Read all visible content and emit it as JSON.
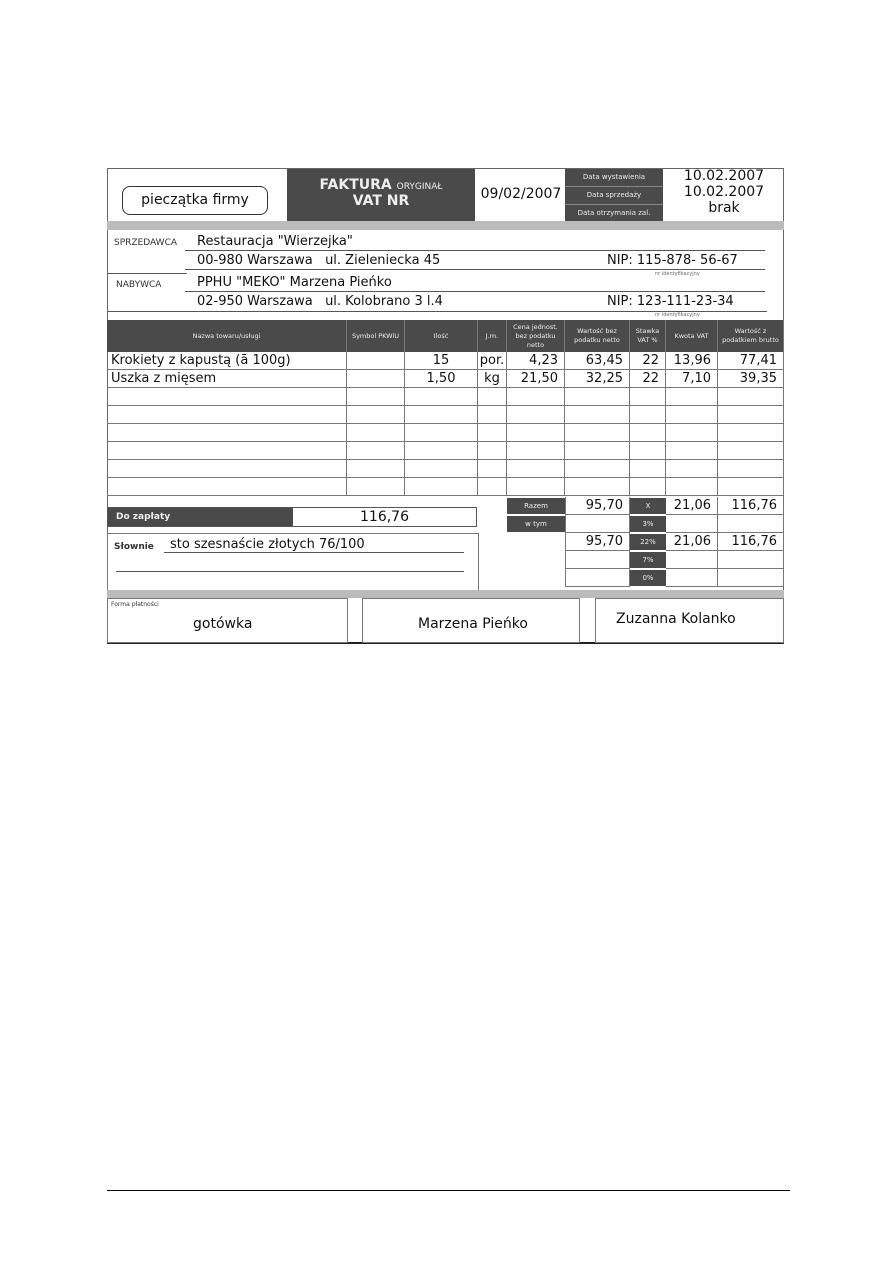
{
  "header": {
    "stamp": "pieczątka firmy",
    "title_main": "FAKTURA",
    "title_sub": "ORYGINAŁ",
    "title_line2": "VAT NR",
    "number_date": "09/02/2007",
    "dates": [
      {
        "label": "Data wystawienia",
        "value": "10.02.2007"
      },
      {
        "label": "Data sprzedaży",
        "value": "10.02.2007"
      },
      {
        "label": "Data otrzymania zal.",
        "value": "brak"
      }
    ]
  },
  "seller": {
    "label": "SPRZEDAWCA",
    "name": "Restauracja \"Wierzejka\"",
    "address": "00-980 Warszawa   ul. Zieleniecka 45",
    "nip": "NIP: 115-878- 56-67",
    "nip_note": "nr identyfikacyjny"
  },
  "buyer": {
    "label": "NABYWCA",
    "name": "PPHU \"MEKO\"  Marzena Pieńko",
    "address": "02-950 Warszawa   ul. Kolobrano 3 l.4",
    "nip": "NIP: 123-111-23-34",
    "nip_note": "nr identyfikacyjny"
  },
  "table": {
    "headers": [
      "Nazwa towaru/usługi",
      "Symbol PKWiU",
      "Ilość",
      "J.m.",
      "Cena jednost. bez podatku netto",
      "Wartość bez podatku netto",
      "Stawka VAT %",
      "Kwota VAT",
      "Wartość z podatkiem brutto"
    ],
    "rows": [
      [
        "Krokiety z kapustą  (ā 100g)",
        "",
        "15",
        "por.",
        "4,23",
        "63,45",
        "22",
        "13,96",
        "77,41"
      ],
      [
        "Uszka z mięsem",
        "",
        "1,50",
        "kg",
        "21,50",
        "32,25",
        "22",
        "7,10",
        "39,35"
      ],
      [
        "",
        "",
        "",
        "",
        "",
        "",
        "",
        "",
        ""
      ],
      [
        "",
        "",
        "",
        "",
        "",
        "",
        "",
        "",
        ""
      ],
      [
        "",
        "",
        "",
        "",
        "",
        "",
        "",
        "",
        ""
      ],
      [
        "",
        "",
        "",
        "",
        "",
        "",
        "",
        "",
        ""
      ],
      [
        "",
        "",
        "",
        "",
        "",
        "",
        "",
        "",
        ""
      ],
      [
        "",
        "",
        "",
        "",
        "",
        "",
        "",
        "",
        ""
      ]
    ]
  },
  "totals": {
    "razem_label": "Razem",
    "w_tym_label": "w tym",
    "rows": [
      {
        "rate": "X",
        "netto": "95,70",
        "vat": "21,06",
        "brutto": "116,76"
      },
      {
        "rate": "3%",
        "netto": "",
        "vat": "",
        "brutto": ""
      },
      {
        "rate": "22%",
        "netto": "95,70",
        "vat": "21,06",
        "brutto": "116,76"
      },
      {
        "rate": "7%",
        "netto": "",
        "vat": "",
        "brutto": ""
      },
      {
        "rate": "0%",
        "netto": "",
        "vat": "",
        "brutto": ""
      }
    ]
  },
  "payment": {
    "due_label": "Do zapłaty",
    "due_value": "116,76",
    "words_label": "Słownie",
    "words_value": "sto szesnaście złotych 76/100"
  },
  "footer": {
    "method_label": "Forma płatności",
    "method_value": "gotówka",
    "receiver": "Marzena Pieńko",
    "issuer": "Zuzanna Kolanko"
  }
}
